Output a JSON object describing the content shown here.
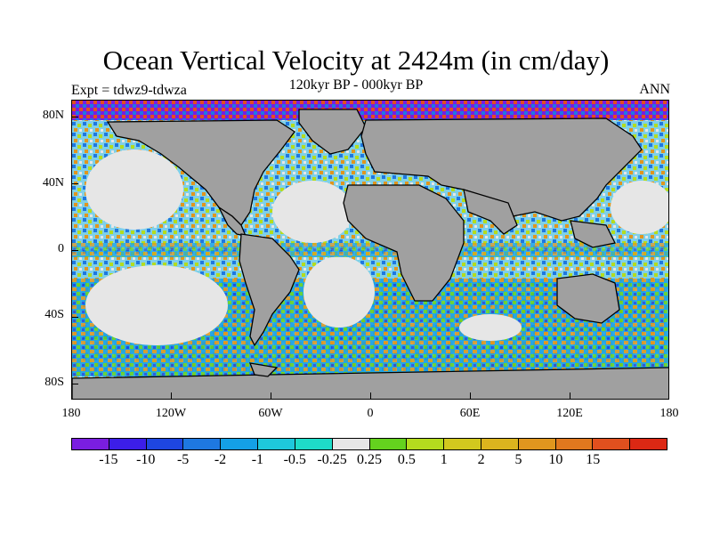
{
  "title": "Ocean Vertical Velocity at 2424m (in cm/day)",
  "experiment": "Expt = tdwz9-tdwza",
  "period": "120kyr BP - 000kyr BP",
  "season": "ANN",
  "map": {
    "land_color": "#a0a0a0",
    "lat_labels": [
      "80N",
      "40N",
      "0",
      "40S",
      "80S"
    ],
    "lon_labels": [
      "180",
      "120W",
      "60W",
      "0",
      "60E",
      "120E",
      "180"
    ]
  },
  "colorbar": {
    "colors": [
      "#7a1ee0",
      "#3c1ee8",
      "#1e46e0",
      "#1e78e0",
      "#14a0e6",
      "#1ec8dc",
      "#1edcc8",
      "#e6e6e6",
      "#64d21e",
      "#b4dc1e",
      "#d2c81e",
      "#dcb41e",
      "#e0961e",
      "#e0781e",
      "#e0501e",
      "#dc2814"
    ],
    "labels": [
      "-15",
      "-10",
      "-5",
      "-2",
      "-1",
      "-0.5",
      "-0.25",
      "0.25",
      "0.5",
      "1",
      "2",
      "5",
      "10",
      "15"
    ]
  }
}
